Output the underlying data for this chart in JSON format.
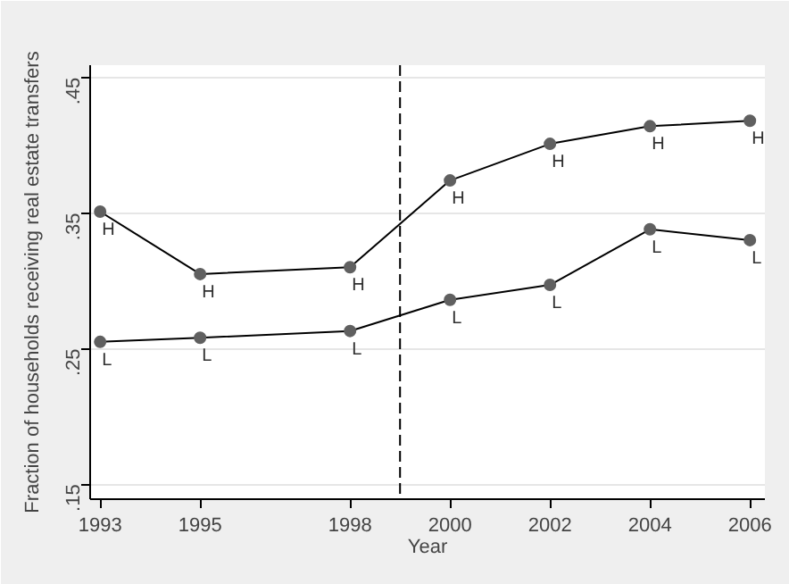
{
  "chart_data": {
    "type": "line",
    "xlabel": "Year",
    "ylabel": "Fraction of households receiving real estate transfers",
    "x": [
      1993,
      1995,
      1998,
      2000,
      2002,
      2004,
      2006
    ],
    "series": [
      {
        "name": "H",
        "color": "#000000",
        "values": [
          0.351,
          0.305,
          0.31,
          0.374,
          0.401,
          0.414,
          0.418
        ]
      },
      {
        "name": "L",
        "color": "#000000",
        "values": [
          0.255,
          0.258,
          0.263,
          0.286,
          0.297,
          0.338,
          0.33
        ]
      }
    ],
    "xlim": [
      1992.8,
      2006.3
    ],
    "ylim": [
      0.139,
      0.459
    ],
    "xticks": [
      1993,
      1995,
      1998,
      2000,
      2002,
      2004,
      2006
    ],
    "yticks": [
      {
        "value": 0.15,
        "label": ".15"
      },
      {
        "value": 0.25,
        "label": ".25"
      },
      {
        "value": 0.35,
        "label": ".35"
      },
      {
        "value": 0.45,
        "label": ".45"
      }
    ],
    "ref_lines": [
      {
        "axis": "x",
        "value": 1999,
        "line_style": "dashed",
        "color": "#000000"
      }
    ],
    "grid": "y",
    "marker": "circle",
    "line_style": "solid"
  }
}
